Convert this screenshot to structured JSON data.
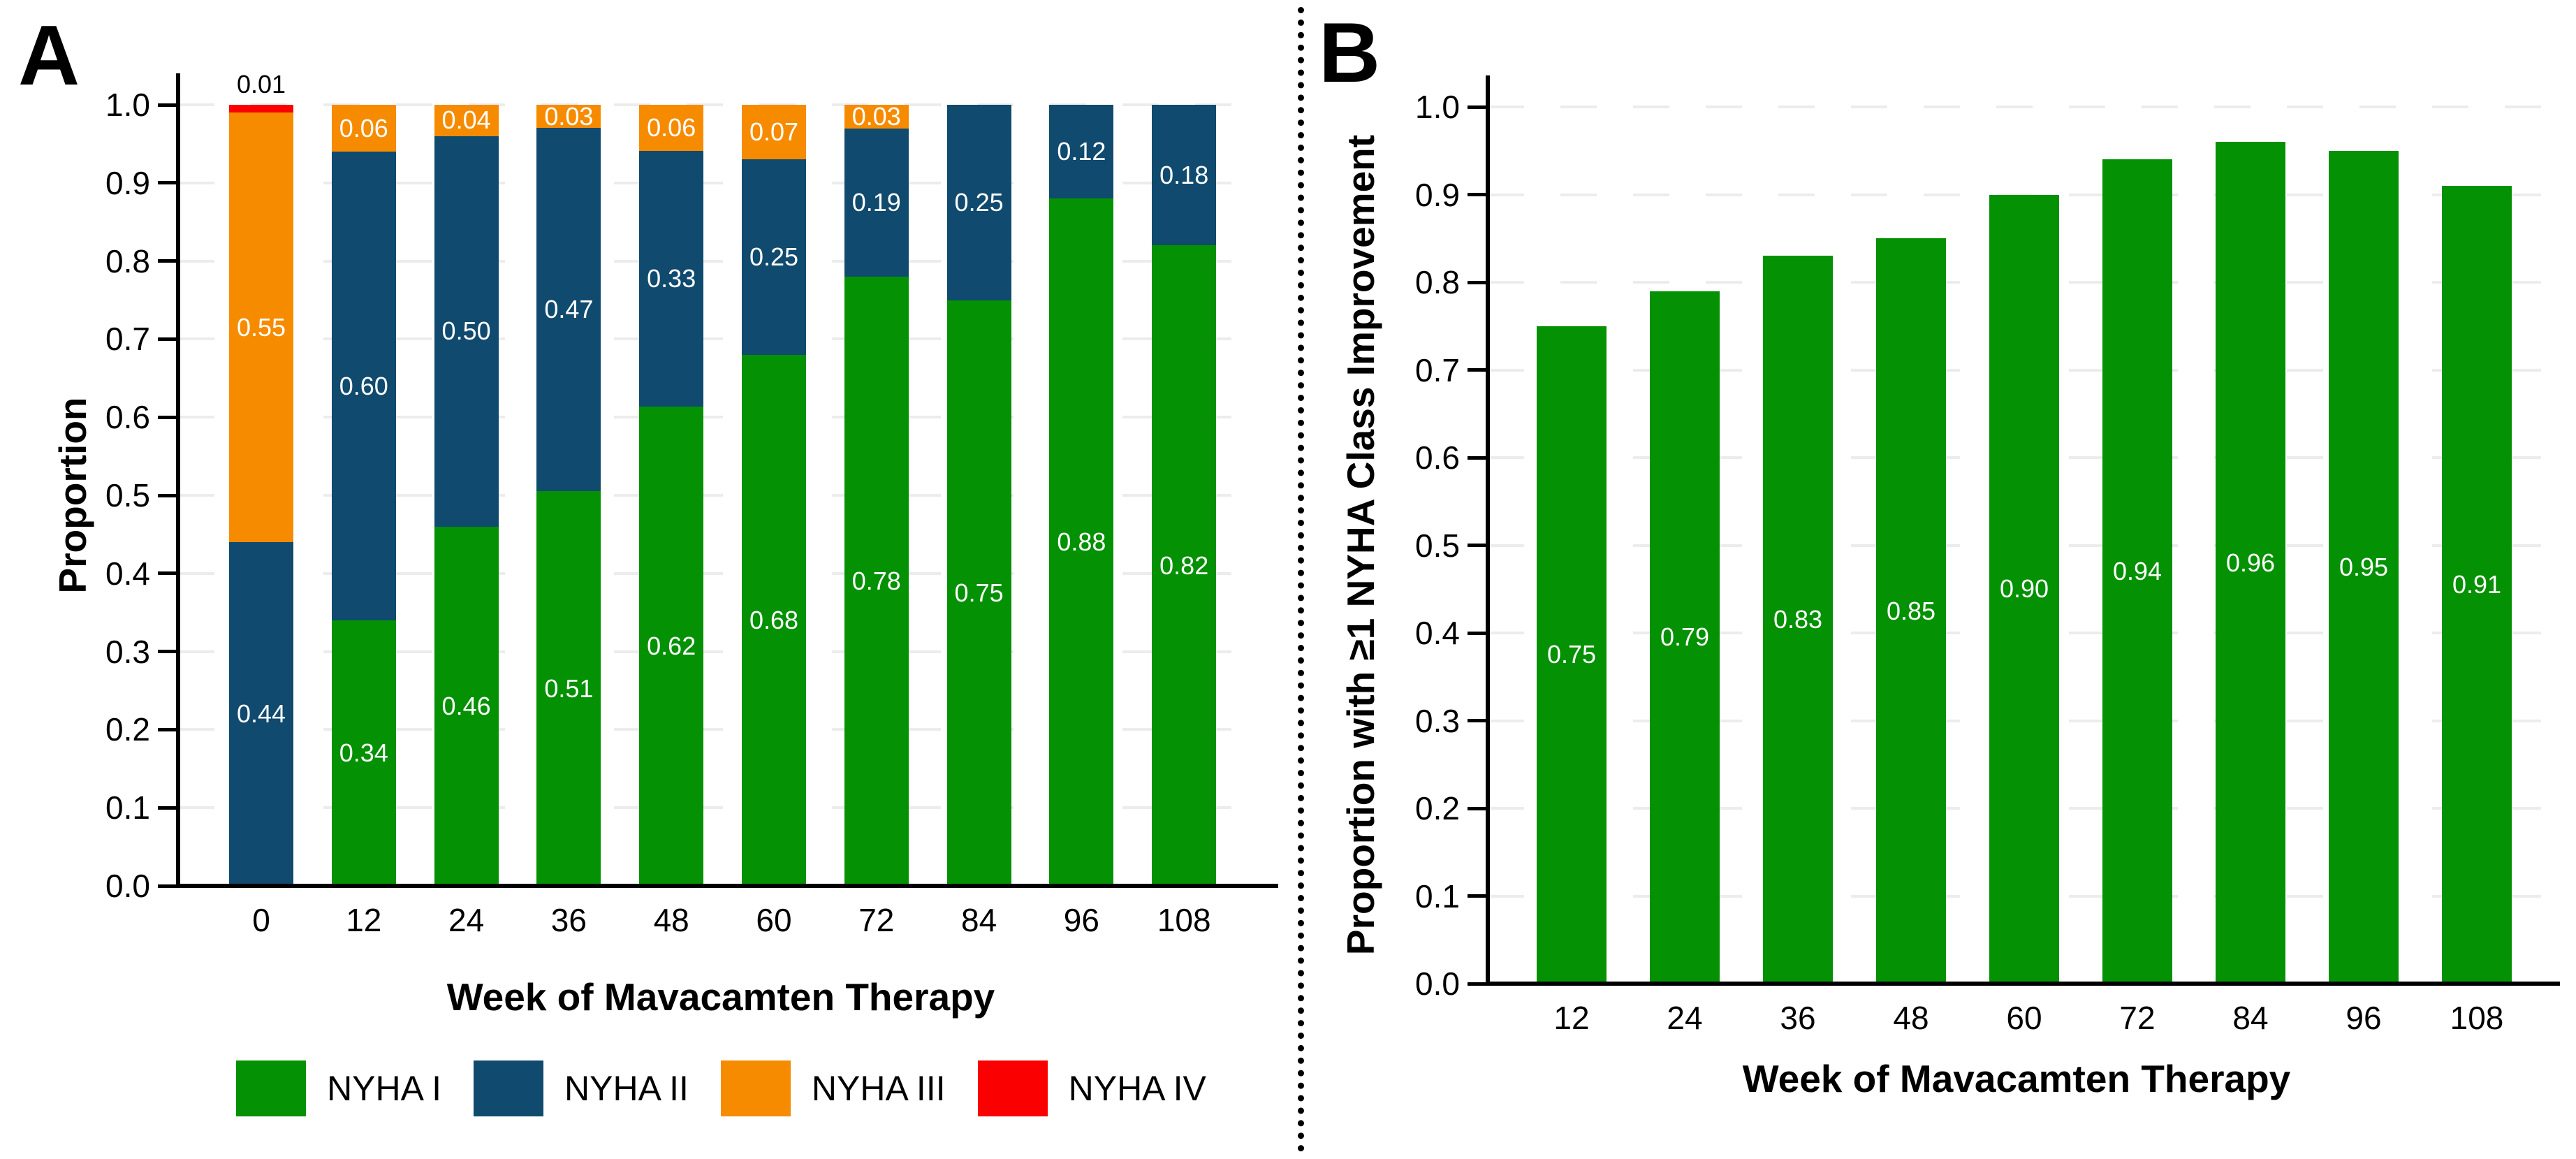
{
  "panels": {
    "a": {
      "letter": "A"
    },
    "b": {
      "letter": "B"
    }
  },
  "colors": {
    "nyha_i_green": "#049104",
    "nyha_ii_blue": "#104a6e",
    "nyha_iii_orange": "#f78b00",
    "nyha_iv_red": "#fb0000",
    "gridline": "#ececec",
    "axis": "#000000"
  },
  "chart_data": [
    {
      "type": "bar",
      "panel": "A",
      "stacked": true,
      "title": "",
      "xlabel": "Week of Mavacamten Therapy",
      "ylabel": "Proportion",
      "ylim": [
        0.0,
        1.0
      ],
      "ytick_step": 0.1,
      "yticks": [
        "0.0",
        "0.1",
        "0.2",
        "0.3",
        "0.4",
        "0.5",
        "0.6",
        "0.7",
        "0.8",
        "0.9",
        "1.0"
      ],
      "grid": "dashed-horizontal",
      "legend_position": "bottom",
      "categories": [
        "0",
        "12",
        "24",
        "36",
        "48",
        "60",
        "72",
        "84",
        "96",
        "108"
      ],
      "series": [
        {
          "name": "NYHA I",
          "color": "#049104",
          "values": [
            0,
            0.34,
            0.46,
            0.51,
            0.62,
            0.68,
            0.78,
            0.75,
            0.88,
            0.82
          ]
        },
        {
          "name": "NYHA II",
          "color": "#104a6e",
          "values": [
            0.44,
            0.6,
            0.5,
            0.47,
            0.33,
            0.25,
            0.19,
            0.25,
            0.12,
            0.18
          ]
        },
        {
          "name": "NYHA III",
          "color": "#f78b00",
          "values": [
            0.55,
            0.06,
            0.04,
            0.03,
            0.06,
            0.07,
            0.03,
            0,
            0,
            0
          ]
        },
        {
          "name": "NYHA IV",
          "color": "#fb0000",
          "values": [
            0.01,
            0,
            0,
            0,
            0,
            0,
            0,
            0,
            0,
            0
          ]
        }
      ]
    },
    {
      "type": "bar",
      "panel": "B",
      "stacked": false,
      "title": "",
      "xlabel": "Week of Mavacamten Therapy",
      "ylabel": "Proportion with ≥1 NYHA Class Improvement",
      "ylim": [
        0.0,
        1.0
      ],
      "ytick_step": 0.1,
      "yticks": [
        "0.0",
        "0.1",
        "0.2",
        "0.3",
        "0.4",
        "0.5",
        "0.6",
        "0.7",
        "0.8",
        "0.9",
        "1.0"
      ],
      "grid": "dashed-horizontal",
      "bar_color": "#049104",
      "categories": [
        "12",
        "24",
        "36",
        "48",
        "60",
        "72",
        "84",
        "96",
        "108"
      ],
      "values": [
        0.75,
        0.79,
        0.83,
        0.85,
        0.9,
        0.94,
        0.96,
        0.95,
        0.91
      ]
    }
  ]
}
